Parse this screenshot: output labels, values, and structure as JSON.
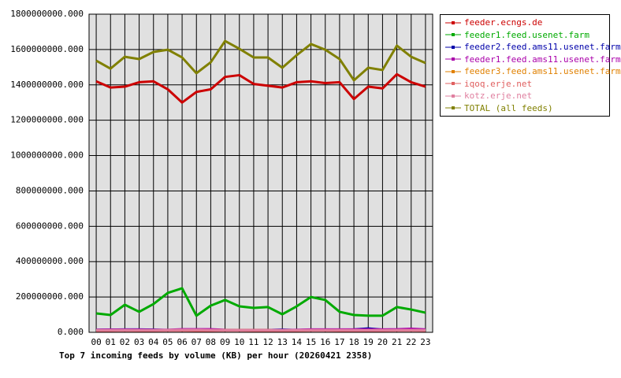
{
  "chart_data": {
    "type": "line",
    "title": "Top 7 incoming feeds by volume (KB) per hour (20260421 2358)",
    "categories": [
      "00",
      "01",
      "02",
      "03",
      "04",
      "05",
      "06",
      "07",
      "08",
      "09",
      "10",
      "11",
      "12",
      "13",
      "14",
      "15",
      "16",
      "17",
      "18",
      "19",
      "20",
      "21",
      "22",
      "23"
    ],
    "ylim": [
      0,
      1800000000
    ],
    "yticks": [
      {
        "value": 0,
        "label": "0.000"
      },
      {
        "value": 200000000,
        "label": "200000000.000"
      },
      {
        "value": 400000000,
        "label": "400000000.000"
      },
      {
        "value": 600000000,
        "label": "600000000.000"
      },
      {
        "value": 800000000,
        "label": "800000000.000"
      },
      {
        "value": 1000000000,
        "label": "1000000000.000"
      },
      {
        "value": 1200000000,
        "label": "1200000000.000"
      },
      {
        "value": 1400000000,
        "label": "1400000000.000"
      },
      {
        "value": 1600000000,
        "label": "1600000000.000"
      },
      {
        "value": 1800000000,
        "label": "1800000000.000"
      }
    ],
    "grid": true,
    "legend": "right",
    "series": [
      {
        "name": "feeder.ecngs.de",
        "color": "#cc0000",
        "values": [
          1420000000,
          1385000000,
          1390000000,
          1415000000,
          1420000000,
          1375000000,
          1300000000,
          1360000000,
          1375000000,
          1445000000,
          1455000000,
          1405000000,
          1395000000,
          1385000000,
          1415000000,
          1420000000,
          1410000000,
          1415000000,
          1320000000,
          1390000000,
          1380000000,
          1460000000,
          1415000000,
          1390000000
        ]
      },
      {
        "name": "feeder1.feed.usenet.farm",
        "color": "#00aa00",
        "values": [
          107000000,
          98000000,
          156000000,
          116000000,
          160000000,
          223000000,
          249000000,
          94000000,
          151000000,
          183000000,
          147000000,
          138000000,
          143000000,
          102000000,
          147000000,
          200000000,
          183000000,
          116000000,
          98000000,
          94000000,
          94000000,
          143000000,
          129000000,
          111000000
        ]
      },
      {
        "name": "feeder2.feed.ams11.usenet.farm",
        "color": "#0000aa",
        "values": [
          14000000,
          15000000,
          16000000,
          16000000,
          15000000,
          13000000,
          12000000,
          14000000,
          14000000,
          12000000,
          11000000,
          12000000,
          13000000,
          15000000,
          13000000,
          14000000,
          15000000,
          15000000,
          16000000,
          22000000,
          15000000,
          15000000,
          16000000,
          14000000
        ]
      },
      {
        "name": "feeder1.feed.ams11.usenet.farm",
        "color": "#aa00aa",
        "values": [
          14000000,
          15000000,
          15000000,
          15000000,
          14000000,
          14000000,
          17000000,
          17000000,
          17000000,
          14000000,
          13000000,
          13000000,
          13000000,
          12000000,
          14000000,
          16000000,
          16000000,
          16000000,
          16000000,
          16000000,
          16000000,
          17000000,
          20000000,
          16000000
        ]
      },
      {
        "name": "feeder3.feed.ams11.usenet.farm",
        "color": "#e08000",
        "values": [
          10000000,
          11000000,
          11000000,
          10000000,
          11000000,
          11000000,
          12000000,
          12000000,
          11000000,
          12000000,
          12000000,
          12000000,
          12000000,
          10000000,
          10000000,
          11000000,
          11000000,
          11000000,
          11000000,
          10000000,
          11000000,
          11000000,
          11000000,
          11000000
        ]
      },
      {
        "name": "iqoq.erje.net",
        "color": "#e06060",
        "values": [
          9000000,
          9000000,
          10000000,
          9000000,
          9000000,
          10000000,
          10000000,
          9000000,
          9000000,
          10000000,
          10000000,
          9000000,
          9000000,
          9000000,
          9000000,
          10000000,
          10000000,
          9000000,
          9000000,
          9000000,
          9000000,
          10000000,
          10000000,
          9000000
        ]
      },
      {
        "name": "kotz.erje.net",
        "color": "#e080a0",
        "values": [
          12000000,
          12000000,
          13000000,
          12000000,
          12000000,
          13000000,
          14000000,
          14000000,
          13000000,
          12000000,
          12000000,
          12000000,
          12000000,
          12000000,
          12000000,
          13000000,
          13000000,
          13000000,
          12000000,
          12000000,
          12000000,
          13000000,
          13000000,
          12000000
        ]
      },
      {
        "name": "TOTAL (all feeds)",
        "color": "#808000",
        "values": [
          1537000000,
          1492000000,
          1559000000,
          1546000000,
          1586000000,
          1599000000,
          1555000000,
          1466000000,
          1528000000,
          1648000000,
          1604000000,
          1555000000,
          1555000000,
          1497000000,
          1568000000,
          1631000000,
          1599000000,
          1546000000,
          1426000000,
          1497000000,
          1484000000,
          1622000000,
          1559000000,
          1524000000
        ]
      }
    ]
  }
}
